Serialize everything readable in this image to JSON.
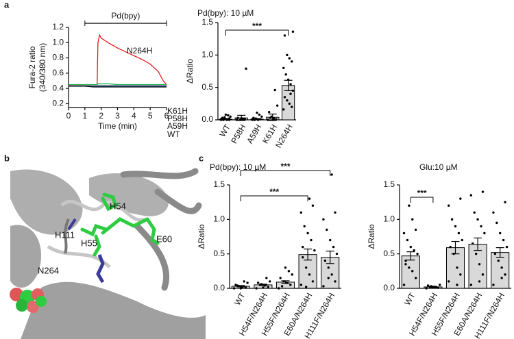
{
  "panels": [
    "a",
    "b",
    "c"
  ],
  "structure": {
    "labels": [
      {
        "text": "H54",
        "color": "#22b84a"
      },
      {
        "text": "H111",
        "color": "#22b84a"
      },
      {
        "text": "H55",
        "color": "#22b84a"
      },
      {
        "text": "E60",
        "color": "#22b84a"
      },
      {
        "text": "N264",
        "color": "#1f6fb4"
      }
    ]
  },
  "chart_data": [
    {
      "type": "line",
      "ylabel": [
        "Fura-2 ratio",
        "(340/380 nm)"
      ],
      "xlabel": "Time (min)",
      "annotation": {
        "text": "Pd(bpy)",
        "x": [
          1,
          6
        ]
      },
      "x": [
        0,
        0.5,
        1,
        1.5,
        1.75,
        1.8,
        1.9,
        2,
        2.5,
        3,
        3.5,
        4,
        4.5,
        5,
        5.5,
        5.8,
        6
      ],
      "series": [
        {
          "name": "N264H",
          "color": "#e41a1c",
          "values": [
            0.44,
            0.44,
            0.44,
            0.44,
            0.44,
            1.0,
            1.1,
            1.06,
            0.99,
            0.93,
            0.88,
            0.83,
            0.78,
            0.72,
            0.62,
            0.5,
            0.45
          ]
        },
        {
          "name": "K61H",
          "color": "#1fb04b",
          "values": [
            0.45,
            0.45,
            0.45,
            0.45,
            0.45,
            0.46,
            0.46,
            0.46,
            0.46,
            0.45,
            0.45,
            0.45,
            0.45,
            0.45,
            0.45,
            0.45,
            0.45
          ]
        },
        {
          "name": "P58H",
          "color": "#8c8c8c",
          "values": [
            0.44,
            0.44,
            0.44,
            0.44,
            0.44,
            0.44,
            0.44,
            0.44,
            0.44,
            0.44,
            0.44,
            0.44,
            0.44,
            0.44,
            0.44,
            0.44,
            0.44
          ]
        },
        {
          "name": "A59H",
          "color": "#3a78c9",
          "values": [
            0.43,
            0.43,
            0.43,
            0.43,
            0.43,
            0.43,
            0.43,
            0.43,
            0.43,
            0.43,
            0.43,
            0.43,
            0.43,
            0.43,
            0.43,
            0.43,
            0.43
          ]
        },
        {
          "name": "WT",
          "color": "#000000",
          "values": [
            0.43,
            0.43,
            0.43,
            0.42,
            0.42,
            0.42,
            0.42,
            0.42,
            0.42,
            0.42,
            0.42,
            0.42,
            0.42,
            0.42,
            0.42,
            0.42,
            0.42
          ]
        }
      ],
      "xlim": [
        0,
        6
      ],
      "xticks": [
        0,
        1,
        2,
        3,
        4,
        5,
        6
      ],
      "ylim": [
        0.15,
        1.2
      ],
      "yticks": [
        0.2,
        0.4,
        0.6,
        0.8,
        {
          "value": 1,
          "label": "1.0"
        },
        1.2
      ]
    },
    {
      "type": "bar",
      "title": "Pd(bpy): 10 µM",
      "ylabel": "ΔRatio",
      "color": "#d9d9d9",
      "categories": [
        "WT",
        "P58H",
        "A59H",
        "K61H",
        "N264H"
      ],
      "values": [
        0.01,
        0.03,
        0.01,
        0.04,
        0.53
      ],
      "errors": [
        0.01,
        0.04,
        0.01,
        0.05,
        0.08
      ],
      "points": [
        [
          0,
          0,
          0.01,
          0.02,
          0.03,
          0.05,
          0.07,
          0.08,
          0,
          0.01,
          0.02,
          0,
          0.04
        ],
        [
          0,
          0.01,
          0.02,
          0,
          0.03,
          0.79,
          0.01,
          0.02
        ],
        [
          0,
          0.01,
          0,
          0.02,
          0.03,
          0.05,
          0.08,
          0.11,
          0,
          0.01
        ],
        [
          0,
          0.01,
          0.02,
          0.05,
          0.12,
          0.22,
          0.46,
          0,
          0.03
        ],
        [
          0.16,
          0.2,
          0.25,
          0.3,
          0.35,
          0.45,
          0.55,
          0.62,
          0.7,
          0.8,
          0.9,
          0.95,
          1.0,
          1.3,
          1.36,
          0.4
        ]
      ],
      "significance": [
        {
          "label": "***",
          "from": "WT",
          "to": "N264H"
        }
      ],
      "ylim": [
        0,
        1.5
      ],
      "yticks": [
        {
          "value": 0,
          "label": "0.0"
        },
        0.5,
        {
          "value": 1,
          "label": "1.0"
        },
        1.5
      ]
    },
    {
      "type": "bar",
      "title": "Pd(bpy): 10 µM",
      "ylabel": "ΔRatio",
      "color": "#d9d9d9",
      "categories": [
        "WT",
        "H54F/N264H",
        "H55F/N264H",
        "E60A/N264H",
        "H111F/N264H"
      ],
      "values": [
        0.03,
        0.05,
        0.09,
        0.49,
        0.45
      ],
      "errors": [
        0.01,
        0.01,
        0.02,
        0.08,
        0.09
      ],
      "points": [
        [
          0,
          0.01,
          0.02,
          0.03,
          0.05,
          0.08,
          0.1,
          0,
          0.04
        ],
        [
          0,
          0.02,
          0.04,
          0.06,
          0.08,
          0.1,
          0.15,
          0.01
        ],
        [
          0,
          0.05,
          0.08,
          0.1,
          0.15,
          0.2,
          0.25,
          0.3,
          0.03
        ],
        [
          0.05,
          0.1,
          0.2,
          0.3,
          0.45,
          0.55,
          0.7,
          0.8,
          0.9,
          1.1,
          1.2,
          1.3,
          0.02,
          0.6
        ],
        [
          0.03,
          0.1,
          0.2,
          0.3,
          0.4,
          0.5,
          0.6,
          0.7,
          0.85,
          1.0,
          1.1,
          1.65,
          0.15
        ]
      ],
      "significance": [
        {
          "label": "***",
          "from": "WT",
          "to": "H111F/N264H"
        },
        {
          "label": "***",
          "from": "WT",
          "to": "E60A/N264H"
        }
      ],
      "ylim": [
        0,
        1.5
      ],
      "yticks": [
        {
          "value": 0,
          "label": "0.0"
        },
        0.5,
        {
          "value": 1,
          "label": "1.0"
        },
        1.5
      ]
    },
    {
      "type": "bar",
      "title": "Glu:10 µM",
      "ylabel": "ΔRatio",
      "color": "#d9d9d9",
      "categories": [
        "WT",
        "H54F/N264H",
        "H55F/N264H",
        "E60A/N264H",
        "H111F/N264H"
      ],
      "values": [
        0.47,
        0.02,
        0.59,
        0.64,
        0.52
      ],
      "errors": [
        0.06,
        0.01,
        0.09,
        0.09,
        0.07
      ],
      "points": [
        [
          0.05,
          0.15,
          0.25,
          0.3,
          0.4,
          0.5,
          0.55,
          0.6,
          0.7,
          0.8,
          0.85,
          1.0,
          1.2,
          0.35
        ],
        [
          0,
          0.01,
          0.02,
          0.03,
          0.04,
          0.05
        ],
        [
          0.1,
          0.2,
          0.3,
          0.5,
          0.6,
          0.7,
          0.8,
          0.9,
          1.0,
          1.2,
          1.3,
          0.05
        ],
        [
          0.05,
          0.2,
          0.35,
          0.5,
          0.65,
          0.8,
          0.9,
          1.0,
          1.1,
          1.35,
          1.4,
          0.1
        ],
        [
          0.05,
          0.2,
          0.3,
          0.4,
          0.5,
          0.6,
          0.7,
          0.8,
          0.95,
          1.1,
          1.25,
          0.15
        ]
      ],
      "significance": [
        {
          "label": "***",
          "from": "WT",
          "to": "H54F/N264H"
        }
      ],
      "ylim": [
        0,
        1.5
      ],
      "yticks": [
        {
          "value": 0,
          "label": "0.0"
        },
        0.5,
        {
          "value": 1,
          "label": "1.0"
        },
        1.5
      ]
    }
  ]
}
